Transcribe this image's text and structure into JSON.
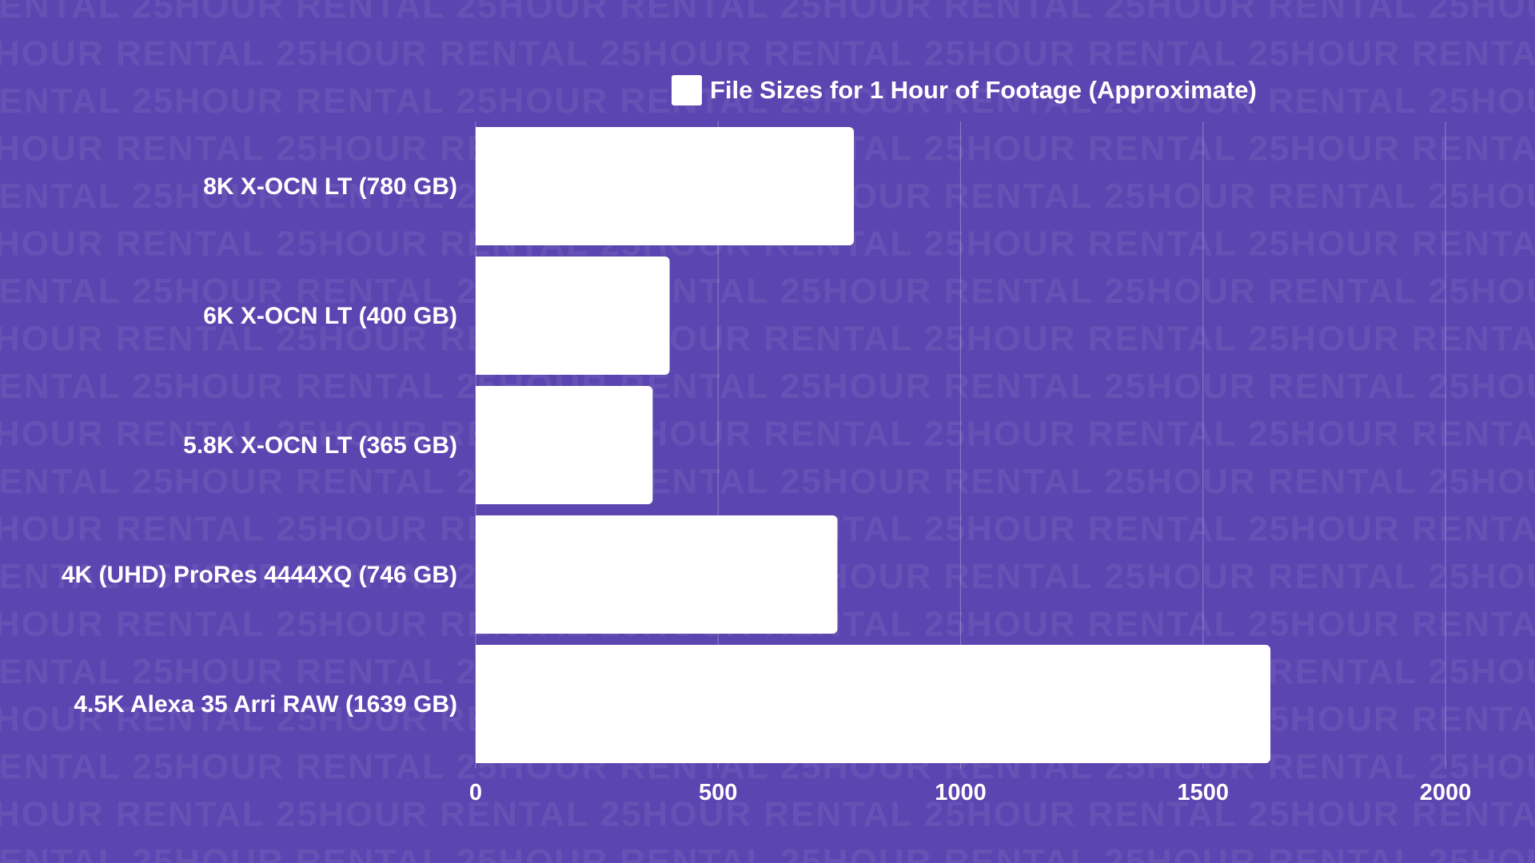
{
  "watermark": {
    "text": "25HOUR RENTAL"
  },
  "colors": {
    "background": "#5b45b0",
    "bar": "#ffffff",
    "text": "#ffffff"
  },
  "chart_data": {
    "type": "bar",
    "orientation": "horizontal",
    "legend": {
      "label": "File Sizes for 1 Hour of Footage (Approximate)",
      "placement": "top-center"
    },
    "categories": [
      "8K X-OCN LT (780 GB)",
      "6K X-OCN LT (400 GB)",
      "5.8K X-OCN LT (365 GB)",
      "4K (UHD) ProRes 4444XQ (746 GB)",
      "4.5K Alexa 35 Arri RAW (1639 GB)"
    ],
    "series": [
      {
        "name": "File Sizes for 1 Hour of Footage (Approximate)",
        "values": [
          780,
          400,
          365,
          746,
          1639
        ]
      }
    ],
    "xlim": [
      0,
      2000
    ],
    "xticks": [
      "0",
      "500",
      "1000",
      "1500",
      "2000"
    ],
    "xtick_values": [
      0,
      500,
      1000,
      1500,
      2000
    ],
    "grid": true,
    "xlabel": "",
    "ylabel": ""
  }
}
